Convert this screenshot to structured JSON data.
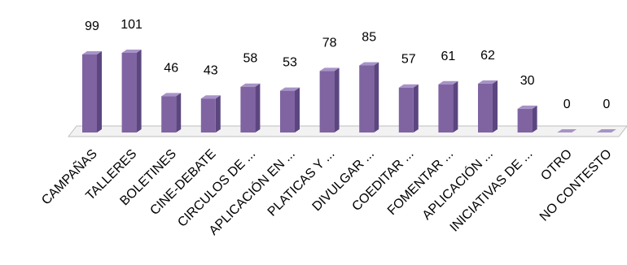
{
  "chart_data": {
    "type": "bar",
    "categories": [
      "CAMPAÑAS",
      "TALLERES",
      "BOLETINES",
      "CINE-DEBATE",
      "CIRCULOS DE ...",
      "APLICACIÓN EN ...",
      "PLATICAS Y ...",
      "DIVULGAR ...",
      "COEDITAR ...",
      "FOMENTAR ...",
      "APLICACIÓN ...",
      "INICIATIVAS  DE ...",
      "OTRO",
      "NO CONTESTO"
    ],
    "values": [
      99,
      101,
      46,
      43,
      58,
      53,
      78,
      85,
      57,
      61,
      62,
      30,
      0,
      0
    ],
    "color": "#8064a2"
  }
}
